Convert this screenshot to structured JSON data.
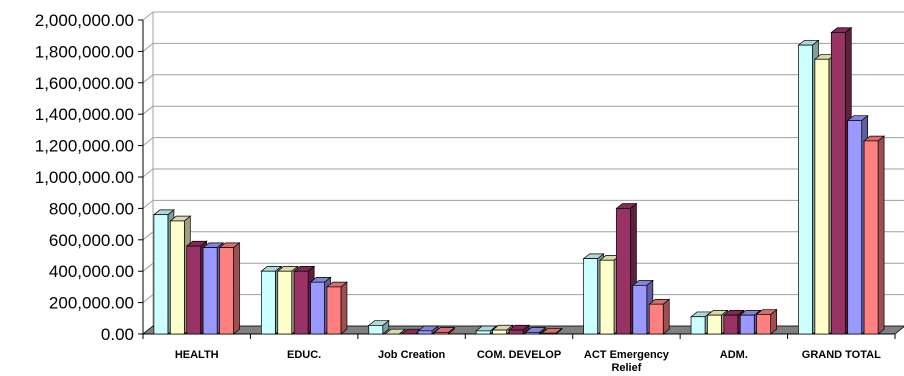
{
  "chart_data": {
    "type": "bar",
    "title": "",
    "xlabel": "",
    "ylabel": "",
    "ylim": [
      0,
      2000000
    ],
    "y_ticks": [
      "0.00",
      "200,000.00",
      "400,000.00",
      "600,000.00",
      "800,000.00",
      "1,000,000.00",
      "1,200,000.00",
      "1,400,000.00",
      "1,600,000.00",
      "1,800,000.00",
      "2,000,000.00"
    ],
    "grid": true,
    "legend": "none",
    "style": "3d-clustered-column",
    "categories": [
      [
        "HEALTH"
      ],
      [
        "EDUC."
      ],
      [
        "Job Creation"
      ],
      [
        "COM. DEVELOP"
      ],
      [
        "ACT Emergency",
        "Relief"
      ],
      [
        "ADM."
      ],
      [
        "GRAND TOTAL"
      ]
    ],
    "series": [
      {
        "color": "#ccffff",
        "values": [
          760000,
          400000,
          55000,
          20000,
          480000,
          110000,
          1840000
        ]
      },
      {
        "color": "#ffffcc",
        "values": [
          720000,
          400000,
          0,
          25000,
          470000,
          120000,
          1750000
        ]
      },
      {
        "color": "#993366",
        "values": [
          560000,
          400000,
          0,
          25000,
          800000,
          120000,
          1920000
        ]
      },
      {
        "color": "#9999ff",
        "values": [
          550000,
          330000,
          20000,
          10000,
          310000,
          120000,
          1360000
        ]
      },
      {
        "color": "#ff8080",
        "values": [
          550000,
          300000,
          10000,
          5000,
          190000,
          125000,
          1230000
        ]
      }
    ]
  }
}
